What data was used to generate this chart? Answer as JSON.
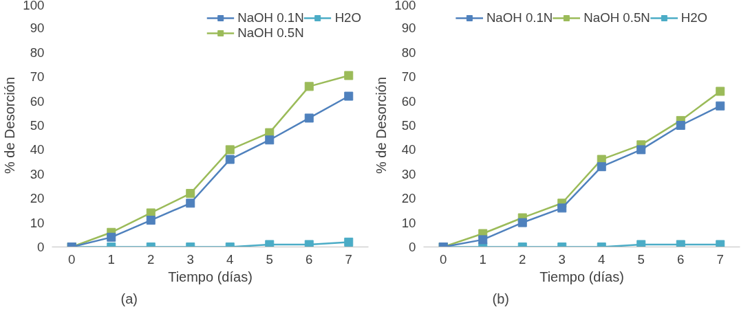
{
  "chart_data": [
    {
      "type": "line",
      "xlabel": "Tiempo (días)",
      "ylabel": "% de Desorción",
      "categories": [
        "0",
        "1",
        "2",
        "3",
        "4",
        "5",
        "6",
        "7"
      ],
      "ylim": [
        0,
        100
      ],
      "yticks": [
        0,
        10,
        20,
        30,
        40,
        50,
        60,
        70,
        80,
        90,
        100
      ],
      "grid": false,
      "legend": "top right",
      "marker": "square",
      "annotations": [
        "(a)"
      ],
      "series": [
        {
          "name": "NaOH 0.1N",
          "color": "#4f81bd",
          "values": [
            0,
            4,
            11,
            18,
            36,
            44,
            53,
            62
          ]
        },
        {
          "name": "NaOH 0.5N",
          "color": "#9bbb59",
          "values": [
            0,
            6,
            14,
            22,
            40,
            47,
            66,
            70.5
          ]
        },
        {
          "name": "H2O",
          "color": "#4bacc6",
          "values": [
            0,
            0,
            0,
            0,
            0,
            1,
            1,
            2
          ]
        }
      ]
    },
    {
      "type": "line",
      "xlabel": "Tiempo (días)",
      "ylabel": "% de Desorción",
      "categories": [
        "0",
        "1",
        "2",
        "3",
        "4",
        "5",
        "6",
        "7"
      ],
      "ylim": [
        0,
        100
      ],
      "yticks": [
        0,
        10,
        20,
        30,
        40,
        50,
        60,
        70,
        80,
        90,
        100
      ],
      "grid": false,
      "legend": "top",
      "marker": "square",
      "annotations": [
        "(b)"
      ],
      "series": [
        {
          "name": "NaOH 0.1N",
          "color": "#4f81bd",
          "values": [
            0,
            3,
            10,
            16,
            33,
            40,
            50,
            58
          ]
        },
        {
          "name": "NaOH 0.5N",
          "color": "#9bbb59",
          "values": [
            0,
            5.5,
            12,
            18,
            36,
            42,
            52,
            64
          ]
        },
        {
          "name": "H2O",
          "color": "#4bacc6",
          "values": [
            0,
            0,
            0,
            0,
            0,
            1,
            1,
            1
          ]
        }
      ]
    }
  ]
}
